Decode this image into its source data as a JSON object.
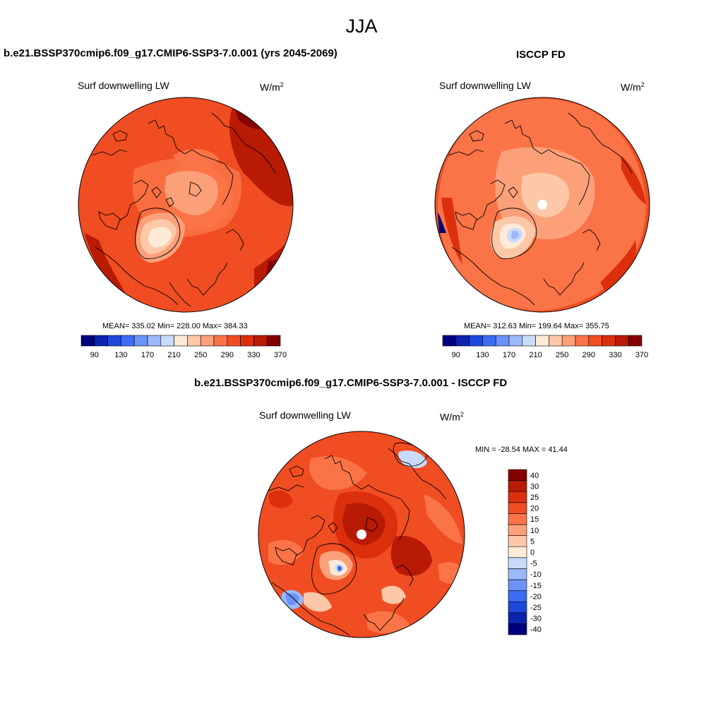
{
  "figure": {
    "season": "JJA"
  },
  "panels": [
    {
      "id": "model",
      "title": "b.e21.BSSP370cmip6.f09_g17.CMIP6-SSP3-7.0.001 (yrs 2045-2069)",
      "left_label": "Surf downwelling LW",
      "units_base": "W/m",
      "units_exp": "2",
      "stats": "MEAN= 335.02  Min= 228.00  Max= 384.33",
      "projection": "north-polar-stereographic",
      "polar_hole": false
    },
    {
      "id": "obs",
      "title": "ISCCP FD",
      "left_label": "Surf downwelling LW",
      "units_base": "W/m",
      "units_exp": "2",
      "stats": "MEAN= 312.63  Min= 199.64  Max= 355.75",
      "projection": "north-polar-stereographic",
      "polar_hole": true
    },
    {
      "id": "diff",
      "title": "b.e21.BSSP370cmip6.f09_g17.CMIP6-SSP3-7.0.001 - ISCCP FD",
      "left_label": "Surf downwelling LW",
      "units_base": "W/m",
      "units_exp": "2",
      "stats": "MIN = -28.54 MAX =  41.44",
      "projection": "north-polar-stereographic",
      "polar_hole": true
    }
  ],
  "colorbars": {
    "abs": {
      "orientation": "horizontal",
      "colors": [
        "#00007f",
        "#0b24b0",
        "#1d48dc",
        "#3d6cf2",
        "#6b93f8",
        "#9bb8fb",
        "#c9dbfd",
        "#fdebd8",
        "#fdc8a8",
        "#fca07a",
        "#fa7447",
        "#f14d22",
        "#dc2f0c",
        "#b81a04",
        "#850000"
      ],
      "tick_labels": [
        "90",
        "130",
        "170",
        "210",
        "250",
        "290",
        "330",
        "370"
      ]
    },
    "diff": {
      "orientation": "vertical",
      "colors": [
        "#00007f",
        "#0b24b0",
        "#1d48dc",
        "#3d6cf2",
        "#6b93f8",
        "#9bb8fb",
        "#c9dbfd",
        "#fdebd8",
        "#fdc8a8",
        "#fca07a",
        "#fa7447",
        "#f14d22",
        "#dc2f0c",
        "#b81a04",
        "#850000"
      ],
      "tick_labels": [
        "-40",
        "-30",
        "-25",
        "-20",
        "-15",
        "-10",
        "-5",
        "0",
        "5",
        "10",
        "15",
        "20",
        "25",
        "30",
        "40"
      ]
    }
  }
}
